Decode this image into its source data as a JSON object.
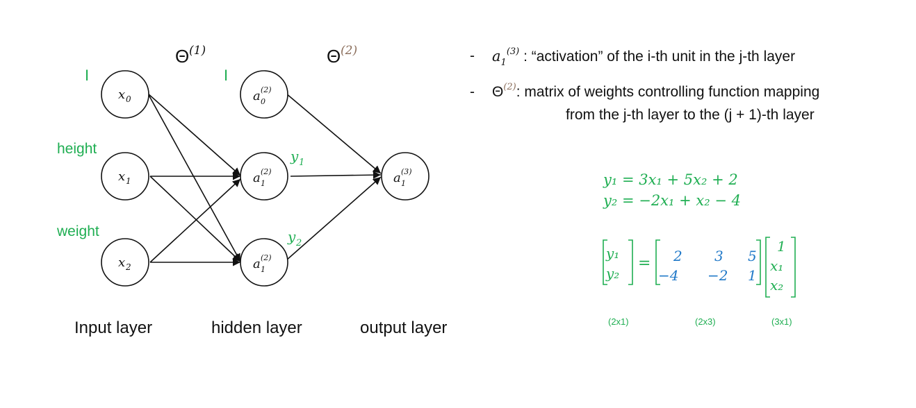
{
  "network": {
    "theta1_label": "Θ",
    "theta1_sup": "(1)",
    "theta2_label": "Θ",
    "theta2_sup": "(2)",
    "bias_marks": [
      "I",
      "I"
    ],
    "input_side_labels": [
      "height",
      "weight"
    ],
    "input_nodes": [
      {
        "base": "x",
        "sub": "0"
      },
      {
        "base": "x",
        "sub": "1"
      },
      {
        "base": "x",
        "sub": "2"
      }
    ],
    "hidden_nodes": [
      {
        "base": "a",
        "sub": "0",
        "sup": "(2)"
      },
      {
        "base": "a",
        "sub": "1",
        "sup": "(2)"
      },
      {
        "base": "a",
        "sub": "1",
        "sup": "(2)"
      }
    ],
    "output_node": {
      "base": "a",
      "sub": "1",
      "sup": "(3)"
    },
    "edge_labels": [
      {
        "base": "y",
        "sub": "1"
      },
      {
        "base": "y",
        "sub": "2"
      }
    ],
    "layer_titles": [
      "Input layer",
      "hidden layer",
      "output layer"
    ]
  },
  "explanations": {
    "bullet_marker": "-",
    "item1": {
      "symbol_base": "a",
      "symbol_sub": "1",
      "symbol_sup": "(3)",
      "text": ": “activation” of the i-th unit in the j-th layer"
    },
    "item2": {
      "symbol": "Θ",
      "symbol_sup": "(2)",
      "line1": ": matrix of weights controlling function mapping",
      "line2": "from the j-th layer to the (j + 1)-th layer"
    }
  },
  "equations": {
    "eq1": "y₁ = 3x₁ + 5x₂ + 2",
    "eq2": "y₂ = −2x₁ + x₂ − 4",
    "equals": "=",
    "lhs_vector": [
      "y₁",
      "y₂"
    ],
    "weight_matrix": [
      [
        "2",
        "3",
        "5"
      ],
      [
        "−4",
        "−2",
        "1"
      ]
    ],
    "input_vector": [
      "1",
      "x₁",
      "x₂"
    ],
    "dimension_labels": [
      "(2x1)",
      "(2x3)",
      "(3x1)"
    ]
  },
  "colors": {
    "green": "#1fae52",
    "blue": "#1f78c8",
    "brown": "#8a6d5a",
    "line": "#111111"
  }
}
